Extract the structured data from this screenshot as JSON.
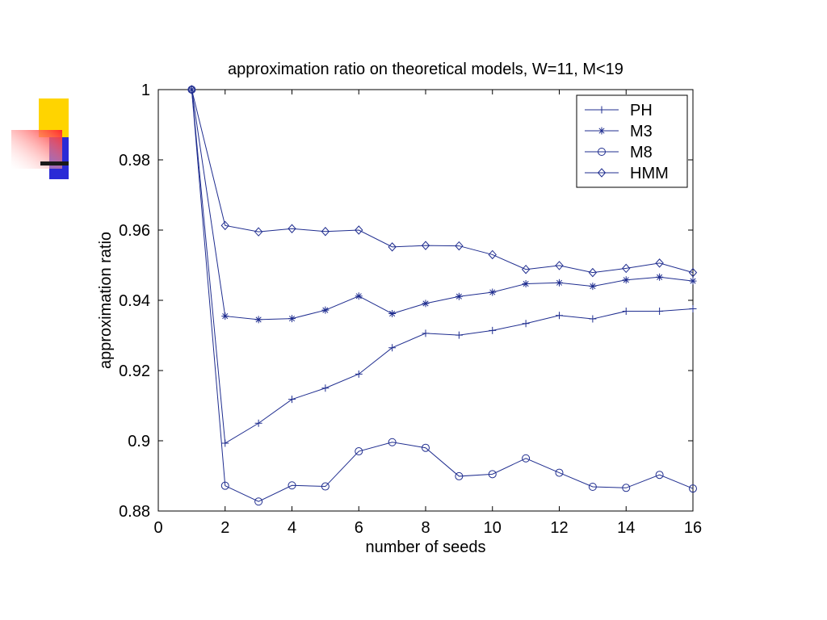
{
  "slide": {
    "accent_colors": {
      "yellow": "#ffd400",
      "red": "#ff3b3b",
      "blue": "#2b2bd6",
      "bar": "#1a1a1a"
    }
  },
  "chart_data": {
    "type": "line",
    "title": "approximation ratio on theoretical models, W=11, M<19",
    "xlabel": "number of seeds",
    "ylabel": "approximation ratio",
    "xlim": [
      0,
      16
    ],
    "ylim": [
      0.88,
      1
    ],
    "xticks": [
      0,
      2,
      4,
      6,
      8,
      10,
      12,
      14,
      16
    ],
    "xtick_labels": [
      "0",
      "2",
      "4",
      "6",
      "8",
      "10",
      "12",
      "14",
      "16"
    ],
    "yticks": [
      0.88,
      0.9,
      0.92,
      0.94,
      0.96,
      0.98,
      1
    ],
    "ytick_labels": [
      "0.88",
      "0.9",
      "0.92",
      "0.94",
      "0.96",
      "0.98",
      "1"
    ],
    "grid": false,
    "legend_position": "top-right",
    "line_color": "#1f2d8f",
    "x": [
      1,
      2,
      3,
      4,
      5,
      6,
      7,
      8,
      9,
      10,
      11,
      12,
      13,
      14,
      15,
      16
    ],
    "series": [
      {
        "name": "PH",
        "marker": "plus",
        "values": [
          1.0,
          0.8993,
          0.905,
          0.9118,
          0.915,
          0.919,
          0.9265,
          0.9306,
          0.9301,
          0.9314,
          0.9334,
          0.9357,
          0.9347,
          0.9369,
          0.9369,
          0.9376
        ]
      },
      {
        "name": "M3",
        "marker": "star",
        "values": [
          1.0,
          0.9355,
          0.9345,
          0.9348,
          0.9372,
          0.9412,
          0.9362,
          0.9391,
          0.9411,
          0.9423,
          0.9447,
          0.945,
          0.944,
          0.9458,
          0.9466,
          0.9455
        ]
      },
      {
        "name": "M8",
        "marker": "circle",
        "values": [
          1.0,
          0.8872,
          0.8827,
          0.8873,
          0.887,
          0.897,
          0.8996,
          0.898,
          0.8899,
          0.8905,
          0.895,
          0.8909,
          0.8869,
          0.8866,
          0.8903,
          0.8864
        ]
      },
      {
        "name": "HMM",
        "marker": "diamond",
        "values": [
          1.0,
          0.9613,
          0.9595,
          0.9604,
          0.9596,
          0.96,
          0.9552,
          0.9556,
          0.9555,
          0.953,
          0.9488,
          0.9499,
          0.9479,
          0.9491,
          0.9506,
          0.9479
        ]
      }
    ]
  }
}
